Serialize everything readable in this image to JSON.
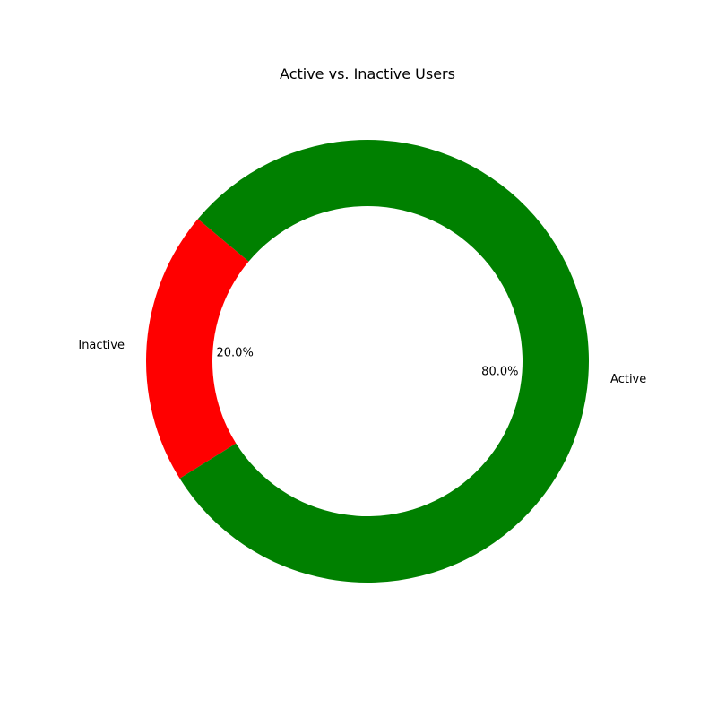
{
  "chart_data": {
    "type": "pie",
    "title": "Active vs. Inactive Users",
    "donut": true,
    "start_angle_deg": 140,
    "counterclockwise": true,
    "slices": [
      {
        "label": "Inactive",
        "value": 20.0,
        "pct_label": "20.0%",
        "color": "#ff0000"
      },
      {
        "label": "Active",
        "value": 80.0,
        "pct_label": "80.0%",
        "color": "#008000"
      }
    ]
  }
}
